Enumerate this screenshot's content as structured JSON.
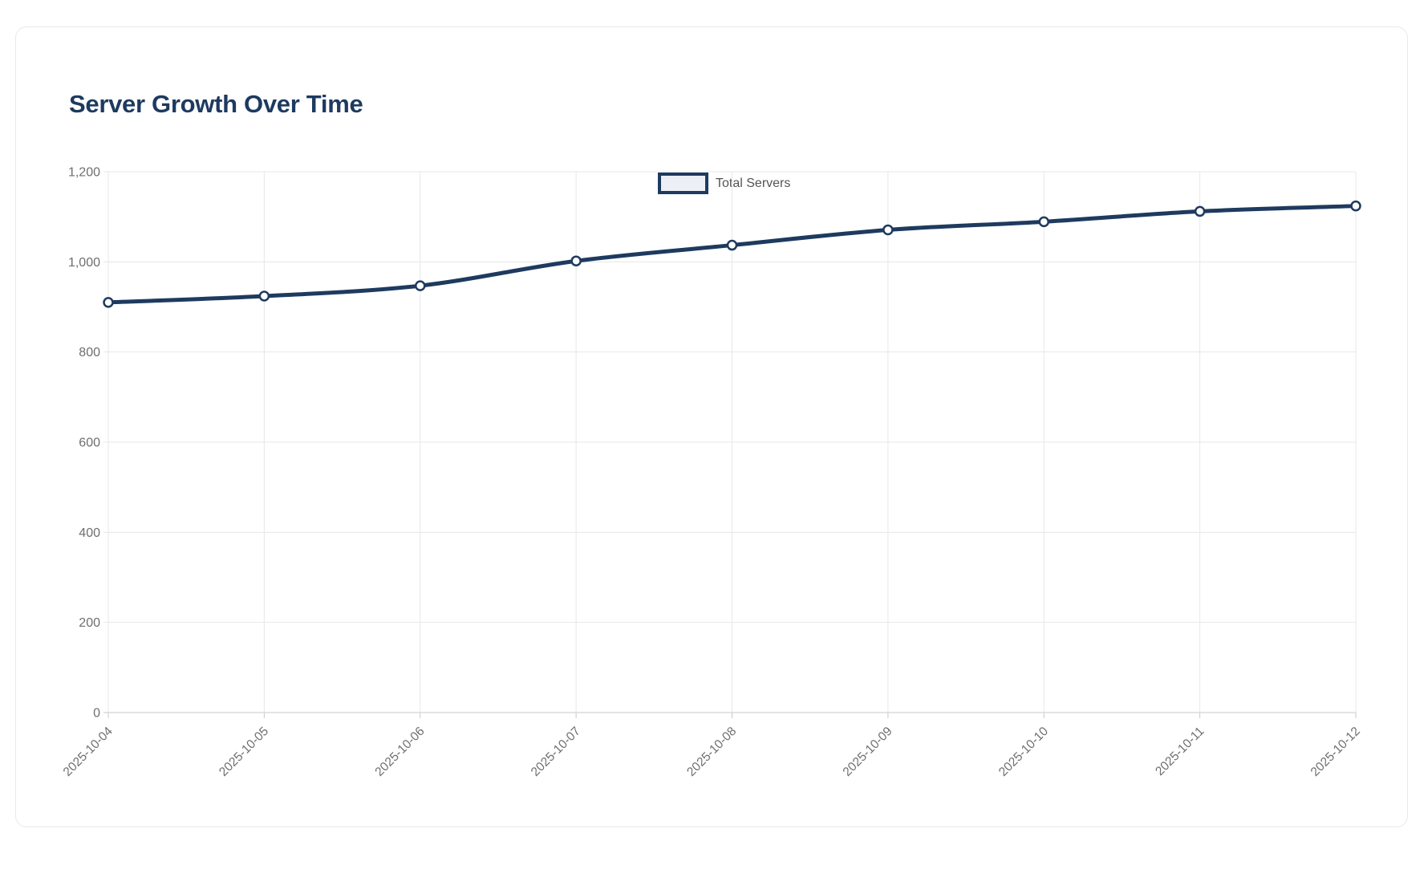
{
  "card": {
    "title": "Server Growth Over Time"
  },
  "legend": {
    "label": "Total Servers",
    "box_border_color": "#1e3a5f",
    "box_fill_color": "#eceff5"
  },
  "chart_data": {
    "type": "line",
    "title": "Server Growth Over Time",
    "categories": [
      "2025-10-04",
      "2025-10-05",
      "2025-10-06",
      "2025-10-07",
      "2025-10-08",
      "2025-10-09",
      "2025-10-10",
      "2025-10-11",
      "2025-10-12"
    ],
    "series": [
      {
        "name": "Total Servers",
        "values": [
          910,
          924,
          947,
          1002,
          1037,
          1071,
          1089,
          1112,
          1124
        ]
      }
    ],
    "xlabel": "",
    "ylabel": "",
    "ylim": [
      0,
      1200
    ],
    "yticks": [
      0,
      200,
      400,
      600,
      800,
      1000,
      1200
    ],
    "ytick_labels": [
      "0",
      "200",
      "400",
      "600",
      "800",
      "1,000",
      "1,200"
    ],
    "grid": true,
    "legend_position": "top-center",
    "x_label_rotation_deg": -45,
    "colors": {
      "line": "#1e3a5f",
      "point_fill": "#fdfdfe",
      "point_border": "#1e3a5f",
      "grid": "#e7e7e7",
      "axis": "#c9c9c9",
      "tick_label": "#6e6e6e",
      "title": "#1e3a5f"
    }
  }
}
